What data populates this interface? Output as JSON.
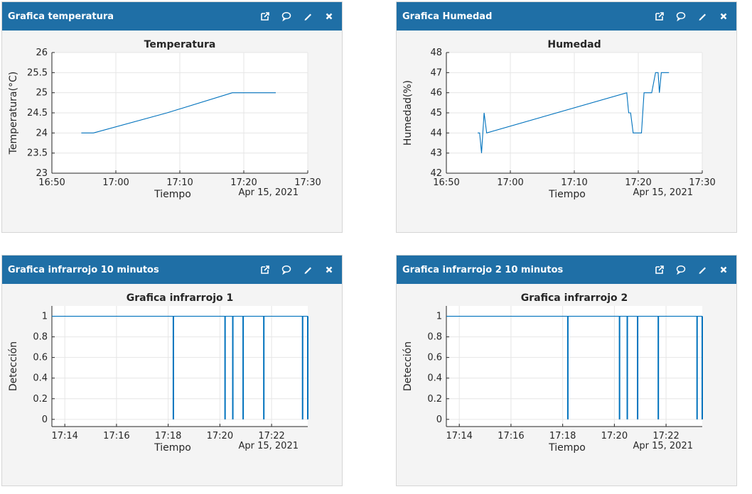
{
  "colors": {
    "header": "#1f6fa6",
    "series": "#0072bd",
    "grid": "#e6e6e6"
  },
  "header_icons": [
    "external-link-icon",
    "comment-icon",
    "pencil-icon",
    "close-icon"
  ],
  "widgets": [
    {
      "title": "Grafica temperatura",
      "chart_data": {
        "type": "line",
        "title": "Temperatura",
        "xlabel": "Tiempo",
        "ylabel": "Temperatura(°C)",
        "date_label": "Apr 15, 2021",
        "xlim": [
          0,
          40
        ],
        "ylim": [
          23,
          26
        ],
        "x_ticks": [
          0,
          10,
          20,
          30,
          40
        ],
        "x_tick_labels": [
          "16:50",
          "17:00",
          "17:10",
          "17:20",
          "17:30"
        ],
        "y_ticks": [
          23,
          23.5,
          24,
          24.5,
          25,
          25.5,
          26
        ],
        "y_tick_labels": [
          "23",
          "23.5",
          "24",
          "24.5",
          "25",
          "25.5",
          "26"
        ],
        "grid": true,
        "series": [
          {
            "x": [
              4.6,
              6.5,
              18.0,
              28.2,
              35.0
            ],
            "y": [
              24,
              24,
              24.5,
              25,
              25
            ]
          }
        ]
      }
    },
    {
      "title": "Grafica Humedad",
      "chart_data": {
        "type": "line",
        "title": "Humedad",
        "xlabel": "Tiempo",
        "ylabel": "Humedad(%)",
        "date_label": "Apr 15, 2021",
        "xlim": [
          0,
          40
        ],
        "ylim": [
          42,
          48
        ],
        "x_ticks": [
          0,
          10,
          20,
          30,
          40
        ],
        "x_tick_labels": [
          "16:50",
          "17:00",
          "17:10",
          "17:20",
          "17:30"
        ],
        "y_ticks": [
          42,
          43,
          44,
          45,
          46,
          47,
          48
        ],
        "y_tick_labels": [
          "42",
          "43",
          "44",
          "45",
          "46",
          "47",
          "48"
        ],
        "grid": true,
        "series": [
          {
            "x": [
              4.9,
              5.2,
              5.5,
              5.7,
              5.9,
              6.1,
              6.3,
              28.2,
              28.5,
              28.8,
              29.2,
              29.5,
              29.9,
              30.5,
              30.9,
              31.5,
              32.1,
              32.7,
              33.1,
              33.3,
              33.6,
              34.8
            ],
            "y": [
              44,
              44,
              43,
              44,
              45,
              44.5,
              44,
              46,
              45,
              45,
              44,
              44,
              44,
              44,
              46,
              46,
              46,
              47,
              47,
              46,
              47,
              47
            ]
          }
        ]
      }
    },
    {
      "title": "Grafica infrarrojo 10 minutos",
      "chart_data": {
        "type": "line",
        "title": "Grafica infrarrojo 1",
        "xlabel": "Tiempo",
        "ylabel": "Detección",
        "date_label": "Apr 15, 2021",
        "xlim": [
          13.5,
          23.4
        ],
        "ylim": [
          -0.07,
          1.1
        ],
        "x_ticks": [
          14,
          16,
          18,
          20,
          22
        ],
        "x_tick_labels": [
          "17:14",
          "17:16",
          "17:18",
          "17:20",
          "17:22"
        ],
        "y_ticks": [
          0,
          0.2,
          0.4,
          0.6,
          0.8,
          1
        ],
        "y_tick_labels": [
          "0",
          "0.2",
          "0.4",
          "0.6",
          "0.8",
          "1"
        ],
        "grid": true,
        "drops": [
          18.2,
          20.2,
          20.5,
          20.9,
          21.7,
          23.2,
          23.4
        ]
      }
    },
    {
      "title": "Grafica infrarrojo 2 10 minutos",
      "chart_data": {
        "type": "line",
        "title": "Grafica infrarrojo 2",
        "xlabel": "Tiempo",
        "ylabel": "Detección",
        "date_label": "Apr 15, 2021",
        "xlim": [
          13.5,
          23.4
        ],
        "ylim": [
          -0.07,
          1.1
        ],
        "x_ticks": [
          14,
          16,
          18,
          20,
          22
        ],
        "x_tick_labels": [
          "17:14",
          "17:16",
          "17:18",
          "17:20",
          "17:22"
        ],
        "y_ticks": [
          0,
          0.2,
          0.4,
          0.6,
          0.8,
          1
        ],
        "y_tick_labels": [
          "0",
          "0.2",
          "0.4",
          "0.6",
          "0.8",
          "1"
        ],
        "grid": true,
        "drops": [
          18.2,
          20.2,
          20.5,
          20.9,
          21.7,
          23.2,
          23.4
        ]
      }
    }
  ]
}
